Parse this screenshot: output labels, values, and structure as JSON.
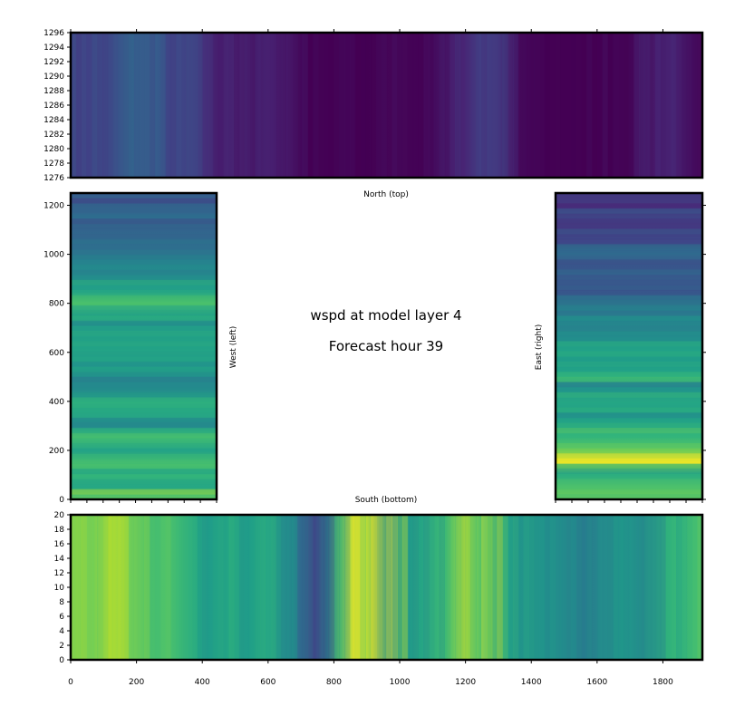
{
  "center_text": {
    "line1": "wspd at model layer 4",
    "line2": "Forecast hour 39"
  },
  "chart_data": [
    {
      "panel": "north",
      "type": "heatmap",
      "label": "North (top)",
      "colormap": "viridis",
      "xlim": [
        0,
        1920
      ],
      "ylim": [
        1276,
        1296
      ],
      "x_ticks": [
        0,
        200,
        400,
        600,
        800,
        1000,
        1200,
        1400,
        1600,
        1800
      ],
      "y_ticks": [
        1276,
        1278,
        1280,
        1282,
        1284,
        1286,
        1288,
        1290,
        1292,
        1294,
        1296
      ],
      "x_bands": [
        0,
        100,
        200,
        260,
        300,
        380,
        450,
        500,
        560,
        600,
        700,
        800,
        900,
        1000,
        1100,
        1150,
        1200,
        1250,
        1300,
        1350,
        1400,
        1500,
        1600,
        1700,
        1780,
        1830,
        1880,
        1920
      ],
      "x_band_values": [
        0.2,
        0.22,
        0.3,
        0.28,
        0.22,
        0.18,
        0.08,
        0.1,
        0.05,
        0.1,
        0.0,
        0.0,
        0.0,
        0.02,
        0.0,
        0.06,
        0.1,
        0.18,
        0.16,
        0.04,
        0.0,
        0.0,
        0.0,
        0.0,
        0.08,
        0.1,
        0.04,
        0.02
      ]
    },
    {
      "panel": "west",
      "type": "heatmap",
      "label": "West (left)",
      "colormap": "viridis",
      "xlim": [
        0,
        450
      ],
      "ylim": [
        0,
        1250
      ],
      "y_ticks": [
        0,
        200,
        400,
        600,
        800,
        1000,
        1200
      ],
      "y_bands": [
        0,
        50,
        100,
        150,
        200,
        250,
        300,
        350,
        400,
        450,
        500,
        550,
        600,
        650,
        700,
        750,
        800,
        850,
        900,
        950,
        1000,
        1050,
        1100,
        1150,
        1200,
        1250
      ],
      "y_band_values": [
        0.75,
        0.6,
        0.65,
        0.72,
        0.6,
        0.7,
        0.52,
        0.58,
        0.6,
        0.48,
        0.5,
        0.55,
        0.6,
        0.55,
        0.52,
        0.6,
        0.72,
        0.55,
        0.5,
        0.45,
        0.42,
        0.38,
        0.32,
        0.35,
        0.28,
        0.25
      ]
    },
    {
      "panel": "east",
      "type": "heatmap",
      "label": "East (right)",
      "colormap": "viridis",
      "xlim": [
        1470,
        1920
      ],
      "ylim": [
        0,
        1250
      ],
      "y_ticks": [
        0,
        200,
        400,
        600,
        800,
        1000,
        1200
      ],
      "y_bands": [
        0,
        50,
        100,
        150,
        200,
        250,
        300,
        350,
        400,
        450,
        500,
        550,
        600,
        650,
        700,
        750,
        800,
        850,
        900,
        950,
        1000,
        1050,
        1100,
        1150,
        1200,
        1250
      ],
      "y_band_values": [
        0.78,
        0.72,
        0.6,
        0.92,
        0.75,
        0.65,
        0.6,
        0.55,
        0.58,
        0.5,
        0.62,
        0.55,
        0.58,
        0.52,
        0.5,
        0.45,
        0.35,
        0.3,
        0.32,
        0.25,
        0.35,
        0.22,
        0.18,
        0.22,
        0.15,
        0.18
      ]
    },
    {
      "panel": "south",
      "type": "heatmap",
      "label": "South (bottom)",
      "colormap": "viridis",
      "xlim": [
        0,
        1920
      ],
      "ylim": [
        0,
        20
      ],
      "x_ticks": [
        0,
        200,
        400,
        600,
        800,
        1000,
        1200,
        1400,
        1600,
        1800
      ],
      "y_ticks": [
        0,
        2,
        4,
        6,
        8,
        10,
        12,
        14,
        16,
        18,
        20
      ],
      "x_bands": [
        0,
        60,
        120,
        180,
        240,
        300,
        360,
        420,
        480,
        540,
        600,
        660,
        700,
        740,
        780,
        820,
        860,
        900,
        960,
        1020,
        1080,
        1140,
        1200,
        1260,
        1320,
        1380,
        1440,
        1500,
        1560,
        1620,
        1680,
        1740,
        1800,
        1860,
        1920
      ],
      "x_band_values": [
        0.82,
        0.78,
        0.9,
        0.8,
        0.7,
        0.72,
        0.62,
        0.55,
        0.6,
        0.55,
        0.6,
        0.5,
        0.35,
        0.2,
        0.45,
        0.75,
        0.98,
        0.95,
        0.5,
        0.55,
        0.62,
        0.7,
        0.92,
        0.7,
        0.55,
        0.5,
        0.52,
        0.45,
        0.42,
        0.5,
        0.55,
        0.45,
        0.62,
        0.68,
        0.72
      ]
    }
  ]
}
